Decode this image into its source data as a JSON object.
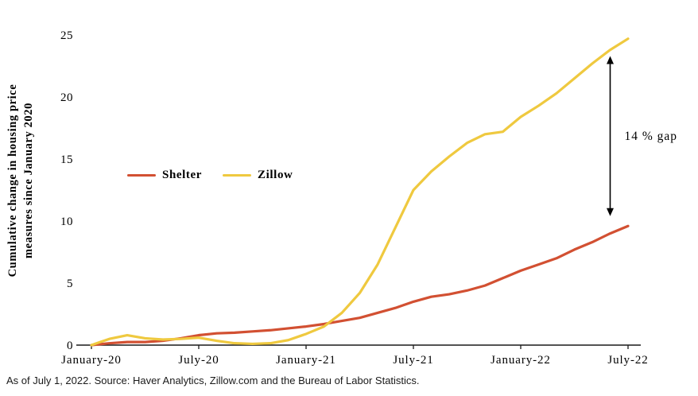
{
  "figure": {
    "footer": "As of July 1, 2022. Source: Haver Analytics, Zillow.com and the Bureau of Labor Statistics."
  },
  "chart_data": {
    "type": "line",
    "title": "",
    "xlabel": "",
    "ylabel_line1": "Cumulative change in housing price",
    "ylabel_line2": "measures since January 2020",
    "ylim": [
      0,
      25
    ],
    "yticks": [
      0,
      5,
      10,
      15,
      20,
      25
    ],
    "x_tick_labels": [
      "January-20",
      "July-20",
      "January-21",
      "July-21",
      "January-22",
      "July-22"
    ],
    "x_tick_indices": [
      0,
      6,
      12,
      18,
      24,
      30
    ],
    "n_points": 31,
    "grid": false,
    "legend_position": "inside-left-middle",
    "series": [
      {
        "name": "Shelter",
        "color": "#d25032",
        "values": [
          0,
          0.15,
          0.25,
          0.25,
          0.35,
          0.55,
          0.8,
          0.95,
          1.0,
          1.1,
          1.2,
          1.35,
          1.5,
          1.7,
          1.95,
          2.2,
          2.6,
          3.0,
          3.5,
          3.9,
          4.1,
          4.4,
          4.8,
          5.4,
          6.0,
          6.5,
          7.0,
          7.7,
          8.3,
          9.0,
          9.6
        ]
      },
      {
        "name": "Zillow",
        "color": "#efc93f",
        "values": [
          0,
          0.5,
          0.8,
          0.55,
          0.45,
          0.5,
          0.6,
          0.35,
          0.15,
          0.1,
          0.15,
          0.4,
          0.9,
          1.5,
          2.6,
          4.2,
          6.5,
          9.5,
          12.5,
          14.0,
          15.2,
          16.3,
          17.0,
          17.2,
          18.4,
          19.3,
          20.3,
          21.5,
          22.7,
          23.8,
          24.7
        ]
      }
    ],
    "annotation": {
      "label": "14 % gap",
      "x_index": 29,
      "y_top": 23.3,
      "y_bottom": 10.4
    }
  }
}
